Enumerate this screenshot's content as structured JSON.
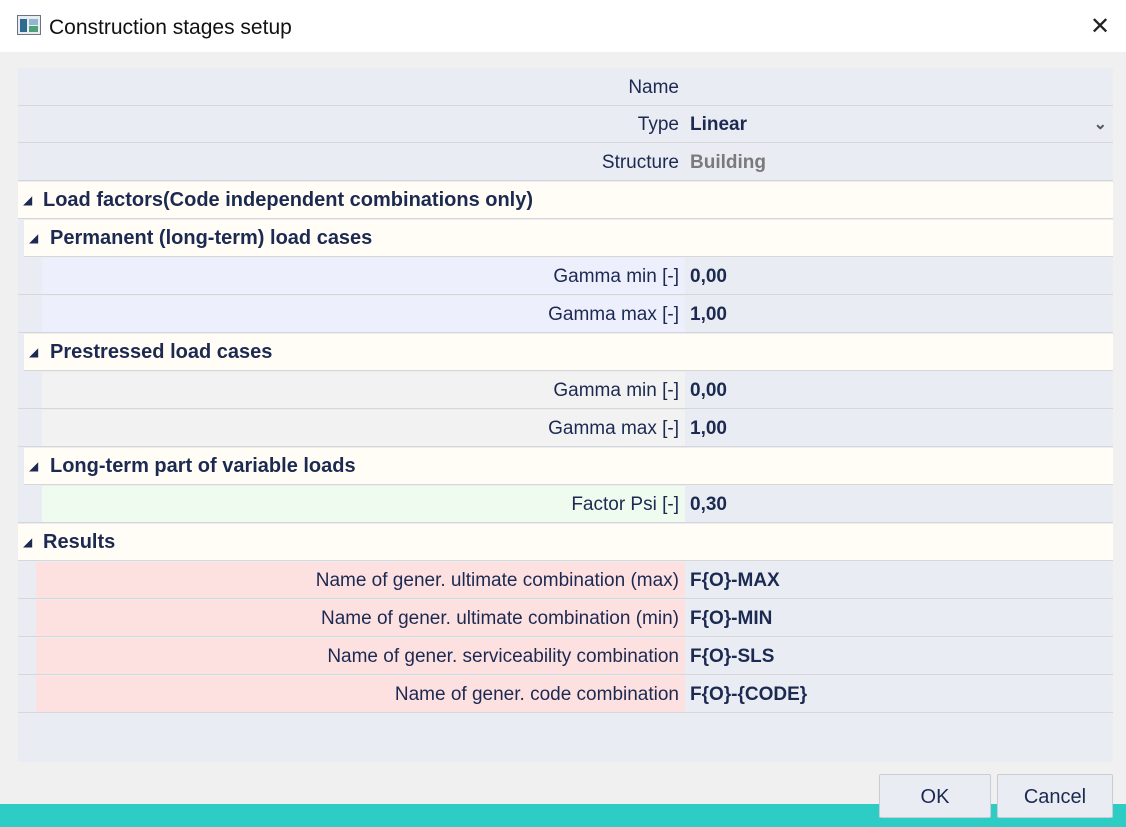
{
  "window": {
    "title": "Construction stages setup",
    "close_label": "✕"
  },
  "fields": {
    "name": {
      "label": "Name",
      "value": ""
    },
    "type": {
      "label": "Type",
      "value": "Linear"
    },
    "structure": {
      "label": "Structure",
      "value": "Building"
    }
  },
  "sections": {
    "load_factors": "Load factors(Code independent combinations only)",
    "permanent": {
      "title": "Permanent (long-term) load cases",
      "gamma_min_label": "Gamma min [-]",
      "gamma_min": "0,00",
      "gamma_max_label": "Gamma max [-]",
      "gamma_max": "1,00"
    },
    "prestressed": {
      "title": "Prestressed load cases",
      "gamma_min_label": "Gamma min [-]",
      "gamma_min": "0,00",
      "gamma_max_label": "Gamma max [-]",
      "gamma_max": "1,00"
    },
    "long_term": {
      "title": "Long-term part of variable loads",
      "psi_label": "Factor Psi [-]",
      "psi": "0,30"
    },
    "results": {
      "title": "Results",
      "ult_max_label": "Name of gener. ultimate combination (max)",
      "ult_max": "F{O}-MAX",
      "ult_min_label": "Name of gener. ultimate combination (min)",
      "ult_min": "F{O}-MIN",
      "sls_label": "Name of gener. serviceability combination",
      "sls": "F{O}-SLS",
      "code_label": "Name of gener. code combination",
      "code": "F{O}-{CODE}"
    }
  },
  "buttons": {
    "ok": "OK",
    "cancel": "Cancel"
  },
  "colors": {
    "permanent_bg": "#eeeffc",
    "prestressed_bg": "#f2f2f2",
    "longterm_bg": "#eefbee",
    "results_bg": "#fde0e0",
    "accent_bar": "#2dccc4"
  }
}
